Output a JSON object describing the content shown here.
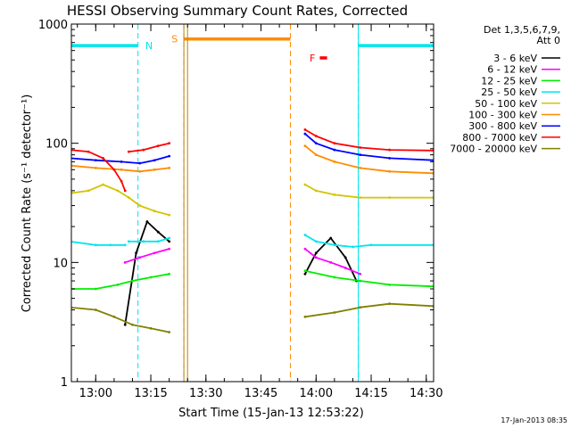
{
  "chart_data": {
    "type": "line",
    "title": "HESSI Observing Summary Count Rates, Corrected",
    "xlabel": "Start Time (15-Jan-13 12:53:22)",
    "ylabel": "Corrected Count Rate (s⁻¹ detector⁻¹)",
    "y_scale": "log",
    "ylim": [
      1,
      1000
    ],
    "xlim": [
      "12:53:22",
      "14:32:00"
    ],
    "x_ticks": [
      "13:00",
      "13:15",
      "13:30",
      "13:45",
      "14:00",
      "14:15",
      "14:30"
    ],
    "y_ticks": [
      "1",
      "10",
      "100",
      "1000"
    ],
    "legend_header": [
      "Det 1,3,5,6,7,9,",
      "Att 0"
    ],
    "legend_position": "right",
    "timestamp": "17-Jan-2013 08:35",
    "series": [
      {
        "name": "3 - 6 keV",
        "color": "#000000",
        "segments": [
          {
            "x": [
              "13:08",
              "13:11",
              "13:14",
              "13:17",
              "13:20"
            ],
            "y": [
              3,
              12,
              22,
              18,
              15
            ]
          },
          {
            "x": [
              "13:57",
              "14:00",
              "14:04",
              "14:08",
              "14:11"
            ],
            "y": [
              8,
              12,
              16,
              11,
              7
            ]
          }
        ]
      },
      {
        "name": "6 - 12 keV",
        "color": "#ff00ff",
        "segments": [
          {
            "x": [
              "13:08",
              "13:12",
              "13:16",
              "13:20"
            ],
            "y": [
              10,
              11,
              12,
              13
            ]
          },
          {
            "x": [
              "13:57",
              "14:00",
              "14:04",
              "14:08",
              "14:12"
            ],
            "y": [
              13,
              11,
              10,
              9,
              8
            ]
          }
        ]
      },
      {
        "name": "12 - 25 keV",
        "color": "#00ee00",
        "segments": [
          {
            "x": [
              "12:53",
              "13:00",
              "13:06",
              "13:10",
              "13:15",
              "13:20"
            ],
            "y": [
              6,
              6,
              6.5,
              7,
              7.5,
              8
            ]
          },
          {
            "x": [
              "13:57",
              "14:05",
              "14:12",
              "14:20",
              "14:32"
            ],
            "y": [
              8.5,
              7.5,
              7,
              6.5,
              6.3
            ]
          }
        ]
      },
      {
        "name": "25 - 50 keV",
        "color": "#00e5ee",
        "segments": [
          {
            "x": [
              "12:53",
              "13:00",
              "13:04",
              "13:08"
            ],
            "y": [
              15,
              14,
              14,
              14
            ]
          },
          {
            "x": [
              "13:09",
              "13:13",
              "13:17",
              "13:20"
            ],
            "y": [
              15,
              15,
              15,
              16
            ]
          },
          {
            "x": [
              "13:57",
              "14:00",
              "14:05",
              "14:10",
              "14:15",
              "14:32"
            ],
            "y": [
              17,
              15,
              14,
              13.5,
              14,
              14
            ]
          }
        ]
      },
      {
        "name": "50 - 100 keV",
        "color": "#d4c400",
        "segments": [
          {
            "x": [
              "12:53",
              "12:58",
              "13:02",
              "13:06",
              "13:09",
              "13:12",
              "13:16",
              "13:20"
            ],
            "y": [
              38,
              40,
              45,
              40,
              35,
              30,
              27,
              25
            ]
          },
          {
            "x": [
              "13:57",
              "14:00",
              "14:05",
              "14:12",
              "14:20",
              "14:32"
            ],
            "y": [
              45,
              40,
              37,
              35,
              35,
              35
            ]
          }
        ]
      },
      {
        "name": "100 - 300 keV",
        "color": "#ff8c00",
        "segments": [
          {
            "x": [
              "12:53",
              "13:00",
              "13:07",
              "13:12",
              "13:16",
              "13:20"
            ],
            "y": [
              65,
              62,
              60,
              58,
              60,
              62
            ]
          },
          {
            "x": [
              "13:57",
              "14:00",
              "14:05",
              "14:12",
              "14:20",
              "14:32"
            ],
            "y": [
              95,
              80,
              70,
              62,
              58,
              56
            ]
          }
        ]
      },
      {
        "name": "300 - 800 keV",
        "color": "#0000ff",
        "segments": [
          {
            "x": [
              "12:53",
              "13:00",
              "13:07",
              "13:12",
              "13:16",
              "13:20"
            ],
            "y": [
              75,
              72,
              70,
              68,
              72,
              78
            ]
          },
          {
            "x": [
              "13:57",
              "14:00",
              "14:05",
              "14:12",
              "14:20",
              "14:32"
            ],
            "y": [
              120,
              100,
              88,
              80,
              75,
              72
            ]
          }
        ]
      },
      {
        "name": "800 - 7000 keV",
        "color": "#ff0000",
        "segments": [
          {
            "x": [
              "12:53",
              "12:58",
              "13:02",
              "13:05",
              "13:07",
              "13:08"
            ],
            "y": [
              88,
              85,
              75,
              60,
              48,
              40
            ]
          },
          {
            "x": [
              "13:09",
              "13:13",
              "13:17",
              "13:20"
            ],
            "y": [
              85,
              88,
              95,
              100
            ]
          },
          {
            "x": [
              "13:57",
              "14:00",
              "14:05",
              "14:12",
              "14:20",
              "14:32"
            ],
            "y": [
              130,
              115,
              100,
              92,
              88,
              87
            ]
          }
        ]
      },
      {
        "name": "7000 - 20000 keV",
        "color": "#808000",
        "segments": [
          {
            "x": [
              "12:53",
              "13:00",
              "13:05",
              "13:10",
              "13:15",
              "13:20"
            ],
            "y": [
              4.2,
              4.0,
              3.5,
              3.0,
              2.8,
              2.6
            ]
          },
          {
            "x": [
              "13:57",
              "14:05",
              "14:12",
              "14:20",
              "14:32"
            ],
            "y": [
              3.5,
              3.8,
              4.2,
              4.5,
              4.3
            ]
          }
        ]
      }
    ],
    "flags": [
      {
        "label": "N",
        "color": "#00e5ee",
        "kind": "night",
        "spans": [
          [
            "12:53:22",
            "13:11:30"
          ],
          [
            "14:11:30",
            "14:32:00"
          ]
        ],
        "bounds": [
          "13:11:30",
          "14:11:30"
        ],
        "bar_y": 660,
        "label_at": "13:14:30"
      },
      {
        "label": "S",
        "color": "#ff8c00",
        "kind": "saa",
        "spans": [
          [
            "13:24:00",
            "13:53:00"
          ]
        ],
        "bounds": [
          "13:24:00",
          "13:53:00"
        ],
        "bar_y": 750,
        "label_at": "13:21:30"
      },
      {
        "label": "F",
        "color": "#ff0000",
        "kind": "flare",
        "spans": [
          [
            "14:01:00",
            "14:03:00"
          ]
        ],
        "bounds": [],
        "bar_y": 520,
        "label_at": "13:59:00"
      }
    ]
  }
}
